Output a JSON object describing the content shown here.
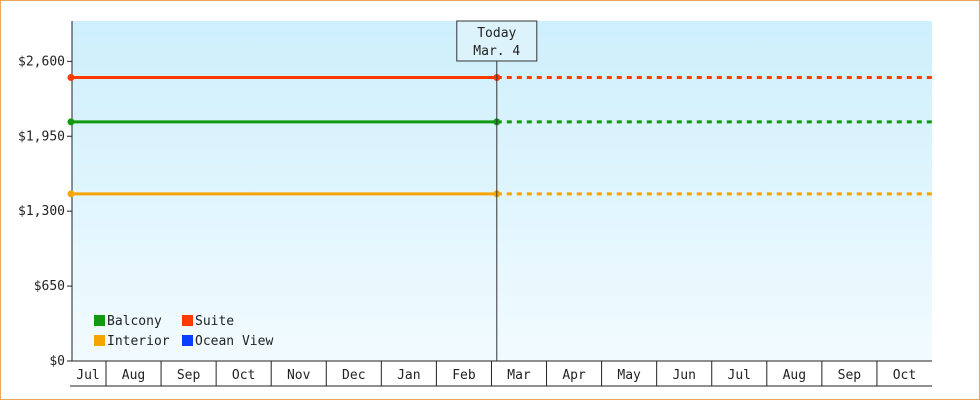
{
  "chart_data": {
    "type": "line",
    "title": "",
    "xlabel": "",
    "ylabel": "",
    "ylim": [
      0,
      2950
    ],
    "yticks": [
      0,
      650,
      1300,
      1950,
      2600
    ],
    "ytick_labels": [
      "$0",
      "$650",
      "$1,300",
      "$1,950",
      "$2,600"
    ],
    "months": [
      "Jul",
      "Aug",
      "Sep",
      "Oct",
      "Nov",
      "Dec",
      "Jan",
      "Feb",
      "Mar",
      "Apr",
      "May",
      "Jun",
      "Jul",
      "Aug",
      "Sep",
      "Oct"
    ],
    "today": {
      "line1": "Today",
      "line2": "Mar. 4"
    },
    "series": [
      {
        "name": "Balcony",
        "color": "#119911",
        "value": 2075
      },
      {
        "name": "Suite",
        "color": "#ff3a00",
        "value": 2460
      },
      {
        "name": "Interior",
        "color": "#f5a400",
        "value": 1450
      },
      {
        "name": "Ocean View",
        "color": "#0a3dff",
        "value": null
      }
    ],
    "grid": false,
    "legend_position": "bottom-left",
    "background_gradient": [
      "#cdeffc",
      "#f2fbff"
    ]
  }
}
